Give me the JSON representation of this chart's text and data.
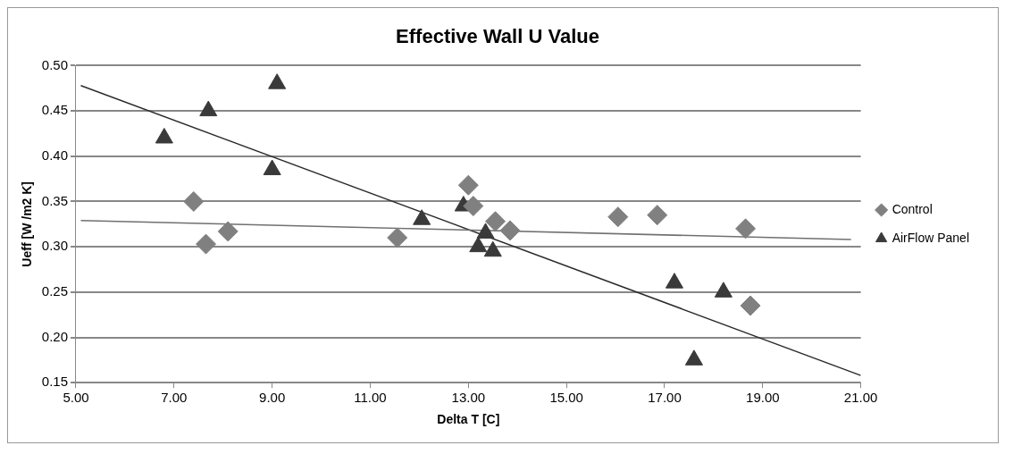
{
  "chart_data": {
    "type": "scatter",
    "title": "Effective Wall U Value",
    "xlabel": "Delta T [C]",
    "ylabel": "Ueff [W /m2 K]",
    "xlim": [
      5,
      21
    ],
    "xticks": [
      {
        "value": 5,
        "label": "5.00"
      },
      {
        "value": 7,
        "label": "7.00"
      },
      {
        "value": 9,
        "label": "9.00"
      },
      {
        "value": 11,
        "label": "11.00"
      },
      {
        "value": 13,
        "label": "13.00"
      },
      {
        "value": 15,
        "label": "15.00"
      },
      {
        "value": 17,
        "label": "17.00"
      },
      {
        "value": 19,
        "label": "19.00"
      },
      {
        "value": 21,
        "label": "21.00"
      }
    ],
    "ylim": [
      0.15,
      0.5
    ],
    "yticks": [
      {
        "value": 0.15,
        "label": "0.15"
      },
      {
        "value": 0.2,
        "label": "0.20"
      },
      {
        "value": 0.25,
        "label": "0.25"
      },
      {
        "value": 0.3,
        "label": "0.30"
      },
      {
        "value": 0.35,
        "label": "0.35"
      },
      {
        "value": 0.4,
        "label": "0.40"
      },
      {
        "value": 0.45,
        "label": "0.45"
      },
      {
        "value": 0.5,
        "label": "0.50"
      }
    ],
    "grid": "y",
    "legend": "right",
    "series": [
      {
        "name": "Control",
        "color": "#808080",
        "marker": "diamond",
        "x": [
          7.4,
          7.65,
          8.1,
          11.55,
          13.0,
          13.1,
          13.55,
          13.85,
          16.05,
          16.85,
          18.65,
          18.75
        ],
        "values": [
          0.35,
          0.303,
          0.317,
          0.31,
          0.368,
          0.345,
          0.328,
          0.318,
          0.333,
          0.335,
          0.32,
          0.235
        ]
      },
      {
        "name": "AirFlow Panel",
        "color": "#3a3a3a",
        "marker": "triangle",
        "x": [
          6.8,
          7.7,
          9.1,
          9.0,
          12.05,
          12.9,
          13.2,
          13.35,
          13.5,
          17.2,
          18.2,
          17.6
        ],
        "values": [
          0.42,
          0.45,
          0.48,
          0.385,
          0.33,
          0.345,
          0.3,
          0.315,
          0.295,
          0.26,
          0.25,
          0.175
        ]
      },
      {
        "type": "line",
        "color": "#707070",
        "marker": "none",
        "x": [
          5.1,
          20.8
        ],
        "values": [
          0.329,
          0.308
        ]
      },
      {
        "type": "line",
        "color": "#2b2b2b",
        "marker": "none",
        "x": [
          5.1,
          21.0
        ],
        "values": [
          0.478,
          0.158
        ]
      }
    ]
  }
}
